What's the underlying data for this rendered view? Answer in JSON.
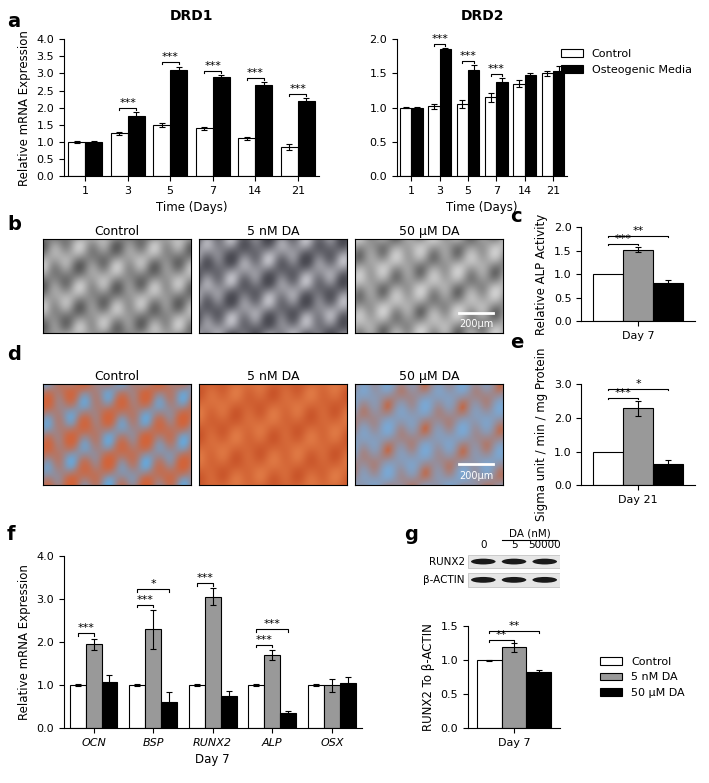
{
  "chart_data": [
    {
      "panel": "a",
      "type": "bar",
      "title": "DRD1",
      "x_label": "Time (Days)",
      "y_label": "Relative mRNA Expression",
      "categories": [
        "1",
        "3",
        "5",
        "7",
        "14",
        "21"
      ],
      "series": [
        {
          "name": "Control",
          "color": "#ffffff",
          "values": [
            1.0,
            1.25,
            1.5,
            1.4,
            1.1,
            0.85
          ],
          "errors": [
            0.02,
            0.05,
            0.05,
            0.05,
            0.05,
            0.08
          ]
        },
        {
          "name": "Osteogenic Media",
          "color": "#000000",
          "values": [
            1.0,
            1.75,
            3.1,
            2.9,
            2.65,
            2.2
          ],
          "errors": [
            0.02,
            0.12,
            0.1,
            0.06,
            0.1,
            0.07
          ]
        }
      ],
      "ylim": [
        0,
        4
      ],
      "yticks": [
        {
          "value": 0,
          "label": "0.0"
        },
        0.5,
        {
          "value": 1,
          "label": "1.0"
        },
        1.5,
        {
          "value": 2,
          "label": "2.0"
        },
        2.5,
        {
          "value": 3,
          "label": "3.0"
        },
        3.5,
        {
          "value": 4,
          "label": "4.0"
        }
      ],
      "annotations": [
        {
          "category": 1,
          "pair": [
            0,
            1
          ],
          "text": "***"
        },
        {
          "category": 2,
          "pair": [
            0,
            1
          ],
          "text": "***"
        },
        {
          "category": 3,
          "pair": [
            0,
            1
          ],
          "text": "***"
        },
        {
          "category": 4,
          "pair": [
            0,
            1
          ],
          "text": "***"
        },
        {
          "category": 5,
          "pair": [
            0,
            1
          ],
          "text": "***"
        }
      ]
    },
    {
      "type": "bar",
      "title": "DRD2",
      "x_label": "Time (Days)",
      "legend": "upper right",
      "categories": [
        "1",
        "3",
        "5",
        "7",
        "14",
        "21"
      ],
      "series": [
        {
          "name": "Control",
          "color": "#ffffff",
          "values": [
            1.0,
            1.02,
            1.05,
            1.15,
            1.35,
            1.5
          ],
          "errors": [
            0.01,
            0.04,
            0.06,
            0.07,
            0.05,
            0.04
          ]
        },
        {
          "name": "Osteogenic Media",
          "color": "#000000",
          "values": [
            1.0,
            1.85,
            1.55,
            1.37,
            1.47,
            1.53
          ],
          "errors": [
            0.01,
            0.02,
            0.07,
            0.06,
            0.04,
            0.08
          ]
        }
      ],
      "ylim": [
        0,
        2
      ],
      "yticks": [
        {
          "value": 0,
          "label": "0.0"
        },
        0.5,
        {
          "value": 1,
          "label": "1.0"
        },
        1.5,
        {
          "value": 2,
          "label": "2.0"
        }
      ],
      "annotations": [
        {
          "category": 1,
          "pair": [
            0,
            1
          ],
          "text": "***"
        },
        {
          "category": 2,
          "pair": [
            0,
            1
          ],
          "text": "***"
        },
        {
          "category": 3,
          "pair": [
            0,
            1
          ],
          "text": "***"
        }
      ]
    },
    {
      "panel": "b",
      "type": "image",
      "titles": [
        "Control",
        "5 nM DA",
        "50 µM DA"
      ],
      "scale_bar": "200µm"
    },
    {
      "panel": "c",
      "type": "bar",
      "y_label": "Relative ALP Activity",
      "categories": [
        "Day 7"
      ],
      "series": [
        {
          "name": "Control",
          "color": "#ffffff",
          "values": [
            1.0
          ]
        },
        {
          "name": "5 nM DA",
          "color": "#999999",
          "values": [
            1.52
          ],
          "errors": [
            0.06
          ]
        },
        {
          "name": "50 µM DA",
          "color": "#000000",
          "values": [
            0.82
          ],
          "errors": [
            0.06
          ]
        }
      ],
      "ylim": [
        0,
        2
      ],
      "yticks": [
        {
          "value": 0,
          "label": "0.0"
        },
        0.5,
        {
          "value": 1,
          "label": "1.0"
        },
        1.5,
        {
          "value": 2,
          "label": "2.0"
        }
      ],
      "annotations": [
        {
          "category": 0,
          "pair": [
            0,
            1
          ],
          "text": "***"
        },
        {
          "category": 0,
          "pair": [
            0,
            2
          ],
          "text": "**"
        }
      ]
    },
    {
      "panel": "d",
      "type": "image",
      "titles": [
        "Control",
        "5 nM DA",
        "50 µM DA"
      ],
      "scale_bar": "200µm"
    },
    {
      "panel": "e",
      "type": "bar",
      "y_label": "Sigma unit / min / mg Protein",
      "categories": [
        "Day 21"
      ],
      "series": [
        {
          "name": "Control",
          "color": "#ffffff",
          "values": [
            1.0
          ]
        },
        {
          "name": "5 nM DA",
          "color": "#999999",
          "values": [
            2.27
          ],
          "errors": [
            0.22
          ]
        },
        {
          "name": "50 µM DA",
          "color": "#000000",
          "values": [
            0.63
          ],
          "errors": [
            0.12
          ]
        }
      ],
      "ylim": [
        0,
        3
      ],
      "yticks": [
        {
          "value": 0,
          "label": "0.0"
        },
        {
          "value": 1,
          "label": "1.0"
        },
        {
          "value": 2,
          "label": "2.0"
        },
        {
          "value": 3,
          "label": "3.0"
        }
      ],
      "annotations": [
        {
          "category": 0,
          "pair": [
            0,
            1
          ],
          "text": "***"
        },
        {
          "category": 0,
          "pair": [
            0,
            2
          ],
          "text": "*"
        }
      ]
    },
    {
      "panel": "f",
      "type": "bar",
      "x_label": "Day 7",
      "y_label": "Relative mRNA Expression",
      "categories": [
        "OCN",
        "BSP",
        "RUNX2",
        "ALP",
        "OSX"
      ],
      "series": [
        {
          "name": "Control",
          "color": "#ffffff",
          "values": [
            1.0,
            1.0,
            1.0,
            1.0,
            1.0
          ],
          "errors": [
            0.02,
            0.02,
            0.02,
            0.02,
            0.02
          ]
        },
        {
          "name": "5 nM DA",
          "color": "#999999",
          "values": [
            1.95,
            2.3,
            3.05,
            1.7,
            1.0
          ],
          "errors": [
            0.13,
            0.45,
            0.2,
            0.12,
            0.15
          ]
        },
        {
          "name": "50 µM DA",
          "color": "#000000",
          "values": [
            1.08,
            0.6,
            0.75,
            0.35,
            1.05
          ],
          "errors": [
            0.15,
            0.25,
            0.12,
            0.06,
            0.13
          ]
        }
      ],
      "ylim": [
        0,
        4
      ],
      "yticks": [
        {
          "value": 0,
          "label": "0.0"
        },
        {
          "value": 1,
          "label": "1.0"
        },
        {
          "value": 2,
          "label": "2.0"
        },
        {
          "value": 3,
          "label": "3.0"
        },
        {
          "value": 4,
          "label": "4.0"
        }
      ],
      "annotations": [
        {
          "category": 0,
          "pair": [
            0,
            1
          ],
          "text": "***"
        },
        {
          "category": 1,
          "pair": [
            0,
            1
          ],
          "text": "***"
        },
        {
          "category": 1,
          "pair": [
            0,
            2
          ],
          "text": "*"
        },
        {
          "category": 2,
          "pair": [
            0,
            1
          ],
          "text": "***"
        },
        {
          "category": 3,
          "pair": [
            0,
            1
          ],
          "text": "***"
        },
        {
          "category": 3,
          "pair": [
            0,
            2
          ],
          "text": "***"
        }
      ]
    },
    {
      "panel": "g",
      "type": "bar",
      "y_label": "RUNX2 To β-ACTIN",
      "legend": "center right",
      "categories": [
        "Day 7"
      ],
      "series": [
        {
          "name": "Control",
          "color": "#ffffff",
          "values": [
            1.0
          ],
          "errors": [
            0.01
          ]
        },
        {
          "name": "5 nM DA",
          "color": "#999999",
          "values": [
            1.19
          ],
          "errors": [
            0.06
          ]
        },
        {
          "name": "50 µM DA",
          "color": "#000000",
          "values": [
            0.83
          ],
          "errors": [
            0.03
          ]
        }
      ],
      "ylim": [
        0,
        1.5
      ],
      "yticks": [
        {
          "value": 0,
          "label": "0.0"
        },
        0.5,
        {
          "value": 1,
          "label": "1.0"
        },
        1.5
      ],
      "annotations": [
        {
          "category": 0,
          "pair": [
            0,
            1
          ],
          "text": "**"
        },
        {
          "category": 0,
          "pair": [
            0,
            2
          ],
          "text": "**"
        }
      ],
      "blot": {
        "header": "DA (nM)",
        "lanes": [
          "0",
          "5",
          "50000"
        ],
        "bands": [
          "RUNX2",
          "β-ACTIN"
        ]
      }
    }
  ]
}
